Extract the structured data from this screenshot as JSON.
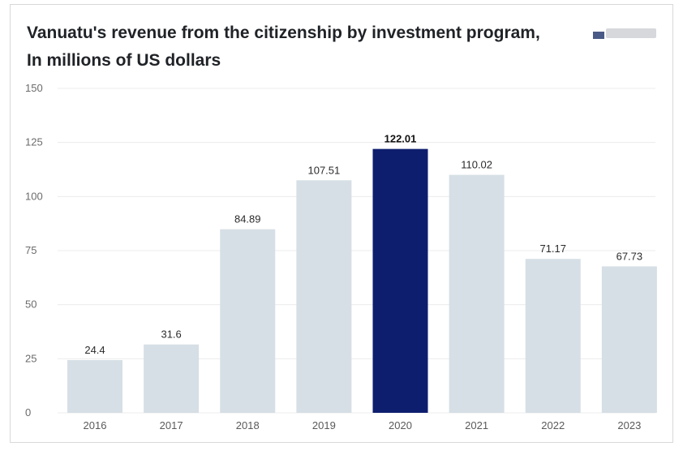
{
  "chart_data": {
    "type": "bar",
    "title": "Vanuatu's revenue from the citizenship by investment program, In millions of US dollars",
    "xlabel": "",
    "ylabel": "",
    "categories": [
      "2016",
      "2017",
      "2018",
      "2019",
      "2020",
      "2021",
      "2022",
      "2023"
    ],
    "values": [
      24.4,
      31.6,
      84.89,
      107.51,
      122.01,
      110.02,
      71.17,
      67.73
    ],
    "value_labels": [
      "24.4",
      "31.6",
      "84.89",
      "107.51",
      "122.01",
      "110.02",
      "71.17",
      "67.73"
    ],
    "highlight_category": "2020",
    "ylim": [
      0,
      150
    ],
    "yticks": [
      0,
      25,
      50,
      75,
      100,
      125,
      150
    ],
    "grid": true,
    "legend": "none",
    "colors": {
      "bar": "#d6dfe5",
      "highlight": "#0e1e6e"
    }
  }
}
